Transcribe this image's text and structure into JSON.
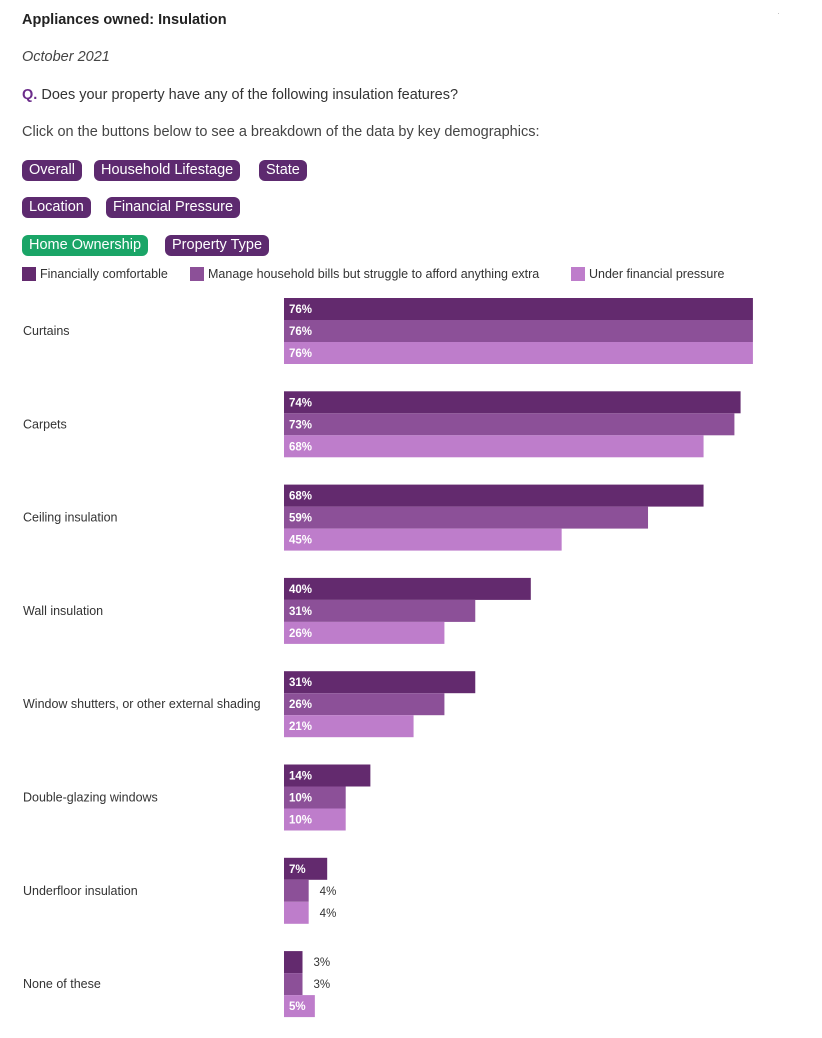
{
  "header": {
    "title": "Appliances owned: Insulation",
    "date": "October 2021",
    "question_prefix": "Q.",
    "question": "Does your property have any of the following insulation features?",
    "instruction": "Click on the buttons below to see a breakdown of the data by key demographics:",
    "corner_mark": "·"
  },
  "buttons": [
    {
      "label": "Overall",
      "active": false
    },
    {
      "label": "Household Lifestage",
      "active": false
    },
    {
      "label": "State",
      "active": false
    },
    {
      "label": "Location",
      "active": false
    },
    {
      "label": "Financial Pressure",
      "active": false
    },
    {
      "label": "Home Ownership",
      "active": true
    },
    {
      "label": "Property Type",
      "active": false
    }
  ],
  "colors": {
    "series_1": "#632a6e",
    "series_2": "#8c5098",
    "series_3": "#be7dcb",
    "button": "#5d2a6f",
    "button_active": "#1aa567"
  },
  "chart_data": {
    "type": "bar",
    "orientation": "horizontal",
    "categories": [
      "Curtains",
      "Carpets",
      "Ceiling insulation",
      "Wall insulation",
      "Window shutters, or other external shading",
      "Double-glazing windows",
      "Underfloor insulation",
      "None of these"
    ],
    "series": [
      {
        "name": "Financially comfortable",
        "values": [
          76,
          74,
          68,
          40,
          31,
          14,
          7,
          3
        ],
        "labels": [
          "76%",
          "74%",
          "68%",
          "40%",
          "31%",
          "14%",
          "7%",
          "3%"
        ]
      },
      {
        "name": "Manage household bills but struggle to afford anything extra",
        "values": [
          76,
          73,
          59,
          31,
          26,
          10,
          4,
          3
        ],
        "labels": [
          "76%",
          "73%",
          "59%",
          "31%",
          "26%",
          "10%",
          "4%",
          "3%"
        ]
      },
      {
        "name": "Under financial pressure",
        "values": [
          76,
          68,
          45,
          26,
          21,
          10,
          4,
          5
        ],
        "labels": [
          "76%",
          "68%",
          "45%",
          "26%",
          "21%",
          "10%",
          "4%",
          "5%"
        ]
      }
    ],
    "unit": "%",
    "legend_position": "top",
    "grid": false
  }
}
